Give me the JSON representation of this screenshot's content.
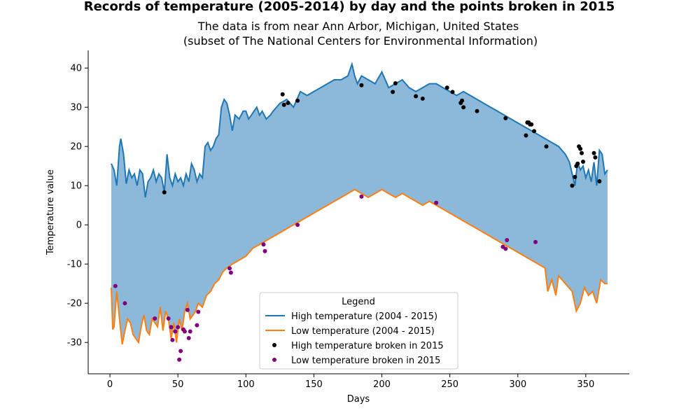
{
  "chart_data": {
    "type": "line",
    "title": "Records of temperature (2005-2014) by day and the points broken in 2015",
    "subtitle_lines": [
      "The data is from near Ann Arbor, Michigan, United States",
      "(subset of The National Centers for Environmental Information)"
    ],
    "xlabel": "Days",
    "ylabel": "Temperature value",
    "xlim": [
      -16,
      382
    ],
    "ylim": [
      -38,
      44.5
    ],
    "x_ticks": [
      0,
      50,
      100,
      150,
      200,
      250,
      300,
      350
    ],
    "y_ticks": [
      -30,
      -20,
      -10,
      0,
      10,
      20,
      30,
      40
    ],
    "grid": false,
    "fill_between": true,
    "legend": {
      "title": "Legend",
      "placement": "lower-center",
      "entries": [
        {
          "label": "High temperature (2004 - 2015)",
          "kind": "line",
          "color": "#1f77b4"
        },
        {
          "label": "Low temperature (2004 - 2015)",
          "kind": "line",
          "color": "#ff7f0e"
        },
        {
          "label": "High temperature broken in 2015",
          "kind": "marker",
          "color": "#000000"
        },
        {
          "label": "Low temperature broken in 2015",
          "kind": "marker",
          "color": "#800080"
        }
      ]
    },
    "colors": {
      "high": "#1f77b4",
      "low": "#ff7f0e",
      "fill": "#8cb8d9",
      "high_broken": "#000000",
      "low_broken": "#800080"
    },
    "series": [
      {
        "name": "High temperature (2004 - 2015)",
        "x": [
          1,
          3,
          5,
          7,
          8,
          10,
          12,
          14,
          16,
          18,
          20,
          22,
          24,
          26,
          28,
          30,
          32,
          34,
          36,
          38,
          40,
          42,
          44,
          46,
          48,
          50,
          52,
          54,
          56,
          58,
          60,
          62,
          64,
          66,
          68,
          70,
          72,
          74,
          76,
          78,
          80,
          82,
          84,
          86,
          88,
          90,
          92,
          95,
          98,
          100,
          102,
          104,
          106,
          108,
          110,
          112,
          115,
          118,
          120,
          125,
          130,
          135,
          140,
          145,
          150,
          155,
          160,
          165,
          170,
          175,
          178,
          180,
          182,
          185,
          190,
          195,
          200,
          205,
          210,
          215,
          220,
          225,
          230,
          235,
          240,
          245,
          250,
          255,
          260,
          265,
          270,
          275,
          280,
          285,
          290,
          295,
          300,
          305,
          310,
          315,
          320,
          325,
          330,
          335,
          338,
          340,
          342,
          344,
          346,
          348,
          350,
          352,
          354,
          356,
          358,
          360,
          362,
          364,
          366
        ],
        "y": [
          15.6,
          14,
          10,
          20,
          22,
          18,
          10.5,
          14,
          12,
          13,
          10,
          14,
          13,
          7,
          11,
          12,
          14,
          11,
          13,
          12,
          8.3,
          18,
          12,
          10,
          13,
          11,
          12,
          10,
          13,
          11,
          15.6,
          14,
          11,
          13,
          12,
          20,
          21,
          19,
          20,
          22,
          23,
          30,
          32,
          31,
          28,
          24,
          28,
          27,
          29,
          29,
          27,
          28,
          29,
          30,
          28,
          29,
          27,
          28,
          29,
          31,
          32,
          30,
          34,
          33,
          34,
          35,
          36,
          37,
          37,
          38,
          41,
          38,
          36,
          38,
          37,
          36,
          39,
          35,
          36,
          37,
          35,
          34,
          35,
          36,
          36,
          35,
          34,
          33,
          34,
          33,
          32,
          31,
          30,
          29,
          28,
          27,
          26,
          25,
          24,
          23,
          22,
          21,
          20,
          18,
          16,
          13,
          10,
          16,
          14,
          15,
          12,
          14,
          11,
          16,
          10,
          19,
          18,
          13,
          14
        ]
      },
      {
        "name": "Low temperature (2004 - 2015)",
        "x": [
          1,
          2,
          3,
          5,
          7,
          9,
          11,
          13,
          15,
          17,
          19,
          21,
          23,
          25,
          27,
          29,
          31,
          33,
          35,
          37,
          39,
          41,
          43,
          45,
          47,
          49,
          51,
          53,
          55,
          57,
          59,
          61,
          63,
          65,
          68,
          71,
          74,
          77,
          80,
          83,
          86,
          90,
          95,
          100,
          105,
          110,
          115,
          120,
          125,
          130,
          135,
          140,
          145,
          150,
          155,
          160,
          165,
          170,
          175,
          180,
          185,
          190,
          195,
          200,
          205,
          210,
          215,
          220,
          225,
          230,
          235,
          240,
          245,
          250,
          255,
          260,
          265,
          270,
          275,
          280,
          285,
          290,
          295,
          300,
          305,
          310,
          315,
          320,
          322,
          325,
          328,
          330,
          335,
          340,
          343,
          346,
          349,
          352,
          355,
          358,
          361,
          364,
          366
        ],
        "y": [
          -16,
          -26.7,
          -26,
          -17,
          -24,
          -30.5,
          -27,
          -24,
          -25,
          -28,
          -29,
          -30,
          -26,
          -23,
          -27,
          -28,
          -24,
          -25,
          -26,
          -21,
          -27,
          -22,
          -24,
          -29,
          -25,
          -30,
          -24,
          -27,
          -22,
          -20,
          -24,
          -23,
          -22,
          -20,
          -21,
          -18,
          -17,
          -15,
          -14,
          -12,
          -11,
          -10,
          -9,
          -8,
          -6,
          -5,
          -4,
          -3,
          -2,
          -1,
          0,
          1,
          2,
          3,
          4,
          5,
          6,
          7,
          8,
          9,
          8,
          7,
          8,
          9,
          8,
          7,
          8,
          7,
          6,
          5,
          6,
          5,
          4,
          3,
          2,
          1,
          0,
          -1,
          -2,
          -3,
          -4,
          -5,
          -6,
          -7,
          -8,
          -9,
          -10,
          -11,
          -17,
          -14,
          -18,
          -13,
          -15,
          -17,
          -22,
          -20,
          -16,
          -18,
          -17,
          -20,
          -14,
          -15,
          -15
        ]
      },
      {
        "name": "High temperature broken in 2015",
        "type": "scatter",
        "x": [
          40,
          127,
          128,
          131,
          138,
          185,
          208,
          210,
          225,
          230,
          248,
          252,
          258,
          259,
          260,
          270,
          291,
          306,
          307,
          308,
          309,
          310,
          312,
          321,
          340,
          342,
          343,
          344,
          345,
          346,
          347,
          348,
          356,
          357,
          360
        ],
        "y": [
          8.3,
          33.3,
          30.6,
          31.1,
          31.7,
          35.6,
          33.9,
          36.1,
          32.8,
          32.2,
          35,
          33.9,
          31.1,
          31.7,
          30,
          29,
          27.2,
          22.8,
          26.1,
          26.1,
          25.6,
          25.6,
          23.9,
          20,
          10,
          12.2,
          15,
          15.6,
          20,
          19.4,
          18.3,
          16.1,
          18.3,
          17.2,
          11.1
        ]
      },
      {
        "name": "Low temperature broken in 2015",
        "type": "scatter",
        "x": [
          4,
          11,
          33,
          43,
          45,
          46,
          48,
          50,
          51,
          52,
          54,
          55,
          57,
          58,
          59,
          64,
          65,
          88,
          89,
          113,
          114,
          138,
          185,
          240,
          289,
          291,
          292,
          313
        ],
        "y": [
          -15.6,
          -20,
          -23.9,
          -23.9,
          -26.1,
          -29.4,
          -27.2,
          -26.1,
          -34.4,
          -32.2,
          -26.7,
          -27.2,
          -21.7,
          -28.9,
          -27.2,
          -25.6,
          -22.2,
          -11.1,
          -12.2,
          -5,
          -6.7,
          0,
          7.2,
          5.6,
          -5.6,
          -6.1,
          -3.9,
          -4.4
        ]
      }
    ]
  }
}
